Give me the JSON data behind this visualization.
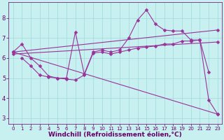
{
  "background_color": "#c8f0f0",
  "line_color": "#993399",
  "marker": "D",
  "markersize": 2.5,
  "linewidth": 0.8,
  "xlabel": "Windchill (Refroidissement éolien,°C)",
  "xlabel_color": "#660066",
  "xlabel_fontsize": 6.5,
  "tick_color": "#660066",
  "grid_color": "#a0d8d8",
  "xlim": [
    -0.5,
    23.5
  ],
  "ylim": [
    2.7,
    8.8
  ],
  "yticks": [
    3,
    4,
    5,
    6,
    7,
    8
  ],
  "xticks": [
    0,
    1,
    2,
    3,
    4,
    5,
    6,
    7,
    8,
    9,
    10,
    11,
    12,
    13,
    14,
    15,
    16,
    17,
    18,
    19,
    20,
    21,
    22,
    23
  ],
  "curves": [
    {
      "x": [
        0,
        1,
        2,
        3,
        4,
        5,
        6,
        7,
        8,
        9,
        10,
        11,
        12,
        13,
        14,
        15,
        16,
        17,
        18,
        19,
        20,
        21,
        22,
        23
      ],
      "y": [
        6.3,
        6.7,
        6.0,
        5.6,
        5.1,
        5.0,
        5.0,
        7.3,
        5.2,
        6.3,
        6.4,
        6.3,
        6.4,
        7.0,
        7.9,
        8.4,
        7.7,
        7.4,
        7.35,
        7.35,
        6.9,
        6.9,
        3.9,
        3.2
      ]
    },
    {
      "x": [
        0,
        23
      ],
      "y": [
        6.3,
        7.4
      ]
    },
    {
      "x": [
        0,
        23
      ],
      "y": [
        6.2,
        6.8
      ]
    },
    {
      "x": [
        0,
        23
      ],
      "y": [
        6.3,
        3.2
      ]
    },
    {
      "x": [
        1,
        2,
        3,
        4,
        5,
        6,
        7,
        8,
        9,
        10,
        11,
        12,
        13,
        14,
        15,
        16,
        17,
        18,
        19,
        20,
        21,
        22
      ],
      "y": [
        6.0,
        5.6,
        5.15,
        5.05,
        5.0,
        4.95,
        4.9,
        5.15,
        6.25,
        6.3,
        6.2,
        6.3,
        6.4,
        6.5,
        6.55,
        6.6,
        6.7,
        6.7,
        6.85,
        6.85,
        6.9,
        5.3
      ]
    }
  ]
}
